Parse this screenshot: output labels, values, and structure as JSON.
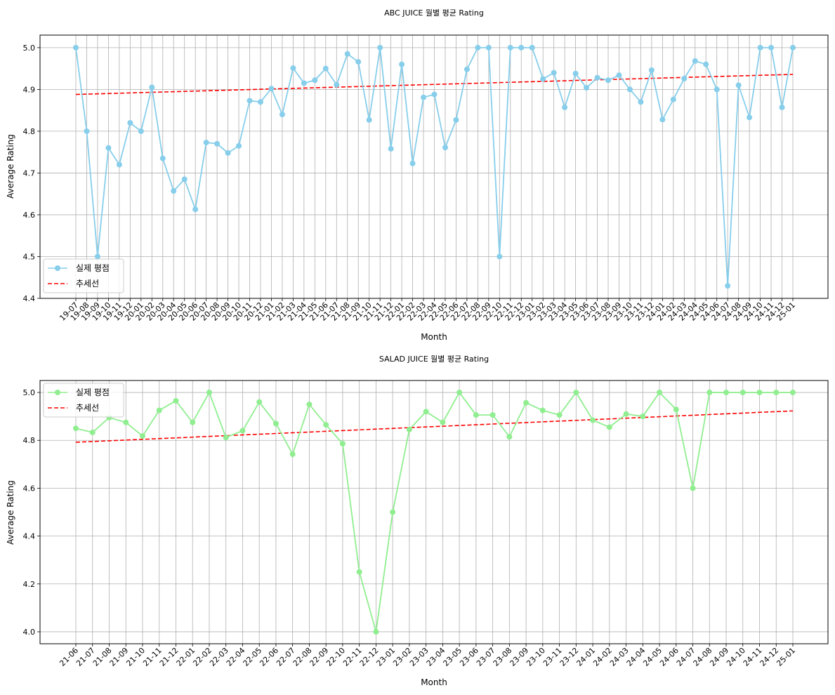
{
  "chart_data": [
    {
      "type": "line",
      "title": "ABC JUICE 월별 평균 Rating",
      "xlabel": "Month",
      "ylabel": "Average Rating",
      "ylim": [
        4.4,
        5.03
      ],
      "yticks": [
        "4.4",
        "4.5",
        "4.6",
        "4.7",
        "4.8",
        "4.9",
        "5.0"
      ],
      "grid": true,
      "legend_position": "lower-left",
      "categories": [
        "19-07",
        "19-08",
        "19-09",
        "19-10",
        "19-11",
        "19-12",
        "20-01",
        "20-02",
        "20-03",
        "20-04",
        "20-05",
        "20-06",
        "20-07",
        "20-08",
        "20-09",
        "20-10",
        "20-11",
        "20-12",
        "21-01",
        "21-02",
        "21-03",
        "21-04",
        "21-05",
        "21-06",
        "21-07",
        "21-08",
        "21-09",
        "21-10",
        "21-11",
        "21-12",
        "22-01",
        "22-02",
        "22-03",
        "22-04",
        "22-05",
        "22-06",
        "22-07",
        "22-08",
        "22-09",
        "22-10",
        "22-11",
        "22-12",
        "23-01",
        "23-02",
        "23-03",
        "23-04",
        "23-05",
        "23-06",
        "23-07",
        "23-08",
        "23-09",
        "23-10",
        "23-11",
        "23-12",
        "24-01",
        "24-02",
        "24-03",
        "24-04",
        "24-05",
        "24-06",
        "24-07",
        "24-08",
        "24-09",
        "24-10",
        "24-11",
        "24-12",
        "25-01"
      ],
      "series": [
        {
          "name": "실제 평점",
          "color": "#87ceeb",
          "marker": "circle",
          "values": [
            5.0,
            4.8,
            4.5,
            4.76,
            4.72,
            4.82,
            4.8,
            4.905,
            4.735,
            4.657,
            4.685,
            4.613,
            4.773,
            4.77,
            4.748,
            4.765,
            4.873,
            4.87,
            4.902,
            4.84,
            4.951,
            4.915,
            4.922,
            4.95,
            4.911,
            4.985,
            4.966,
            4.827,
            5.0,
            4.758,
            4.96,
            4.723,
            4.881,
            4.888,
            4.761,
            4.827,
            4.948,
            5.0,
            5.0,
            4.5,
            5.0,
            5.0,
            5.0,
            4.925,
            4.94,
            4.857,
            4.938,
            4.904,
            4.928,
            4.922,
            4.934,
            4.9,
            4.87,
            4.946,
            4.828,
            4.876,
            4.926,
            4.968,
            4.96,
            4.9,
            4.43,
            4.91,
            4.833,
            5.0,
            5.0,
            4.857,
            5.0
          ]
        },
        {
          "name": "추세선",
          "color": "#ff0000",
          "style": "dashed",
          "trend": [
            4.888,
            4.936
          ]
        }
      ]
    },
    {
      "type": "line",
      "title": "SALAD JUICE 월별 평균 Rating",
      "xlabel": "Month",
      "ylabel": "Average Rating",
      "ylim": [
        3.95,
        5.05
      ],
      "yticks": [
        "4.0",
        "4.2",
        "4.4",
        "4.6",
        "4.8",
        "5.0"
      ],
      "grid": true,
      "legend_position": "upper-left",
      "categories": [
        "21-06",
        "21-07",
        "21-08",
        "21-09",
        "21-10",
        "21-11",
        "21-12",
        "22-01",
        "22-02",
        "22-03",
        "22-04",
        "22-05",
        "22-06",
        "22-07",
        "22-08",
        "22-09",
        "22-10",
        "22-11",
        "22-12",
        "23-01",
        "23-02",
        "23-03",
        "23-04",
        "23-05",
        "23-06",
        "23-07",
        "23-08",
        "23-09",
        "23-10",
        "23-11",
        "23-12",
        "24-01",
        "24-02",
        "24-03",
        "24-04",
        "24-05",
        "24-06",
        "24-07",
        "24-08",
        "24-09",
        "24-10",
        "24-11",
        "24-12",
        "25-01"
      ],
      "series": [
        {
          "name": "실제 평점",
          "color": "#90ee90",
          "marker": "circle",
          "values": [
            4.85,
            4.833,
            4.895,
            4.875,
            4.818,
            4.925,
            4.965,
            4.875,
            5.0,
            4.812,
            4.84,
            4.96,
            4.87,
            4.742,
            4.95,
            4.865,
            4.786,
            4.25,
            4.0,
            4.5,
            4.845,
            4.92,
            4.875,
            5.0,
            4.906,
            4.906,
            4.815,
            4.957,
            4.925,
            4.906,
            5.0,
            4.884,
            4.855,
            4.91,
            4.9,
            5.0,
            4.929,
            4.6,
            5.0,
            5.0,
            5.0,
            5.0,
            5.0,
            5.0
          ]
        },
        {
          "name": "추세선",
          "color": "#ff0000",
          "style": "dashed",
          "trend": [
            4.792,
            4.923
          ]
        }
      ]
    }
  ]
}
